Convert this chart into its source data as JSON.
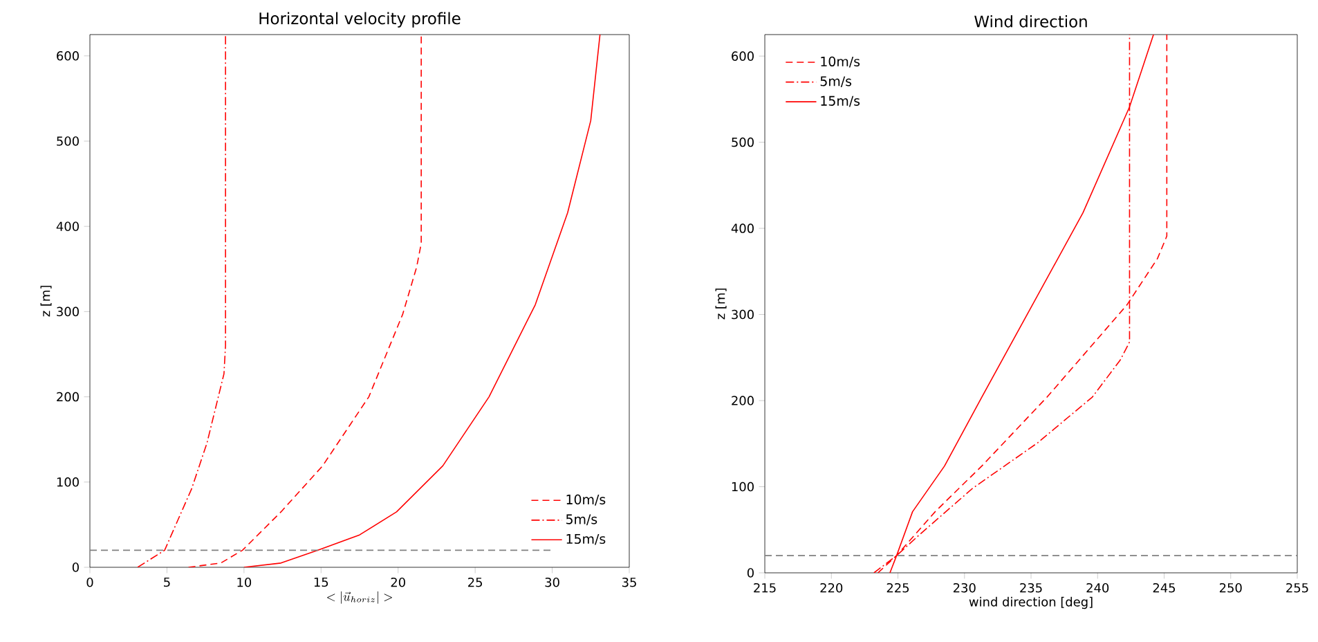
{
  "chart_data": [
    {
      "type": "line",
      "title": "Horizontal velocity profile",
      "xlabel": "<|\\vec{u}_{horiz}|>",
      "ylabel": "z [m]",
      "xlim": [
        0,
        35
      ],
      "ylim": [
        0,
        625
      ],
      "xticks": [
        0,
        5,
        10,
        15,
        20,
        25,
        30,
        35
      ],
      "yticks": [
        0,
        100,
        200,
        300,
        400,
        500,
        600
      ],
      "legend": "bottom right",
      "series": [
        {
          "name": "10m/s",
          "color": "#ff0000",
          "line_style": "dashed",
          "x": [
            6.4,
            8.5,
            9.9,
            12.4,
            15.1,
            18.1,
            20.3,
            21.2,
            21.5,
            21.5
          ],
          "values": [
            0,
            5,
            20,
            65,
            119,
            200,
            297,
            352,
            380,
            625
          ]
        },
        {
          "name": "5m/s",
          "color": "#ff0000",
          "line_style": "dashdot",
          "x": [
            3.1,
            4.85,
            6.6,
            7.6,
            8.7,
            8.8,
            8.8
          ],
          "values": [
            0,
            20,
            92,
            146,
            227,
            260,
            625
          ]
        },
        {
          "name": "15m/s",
          "color": "#ff0000",
          "line_style": "solid",
          "x": [
            10.0,
            12.4,
            14.8,
            17.5,
            19.9,
            22.9,
            25.9,
            28.9,
            31.0,
            32.5,
            33.1
          ],
          "values": [
            0,
            5,
            20,
            38,
            65,
            119,
            200,
            308,
            416,
            524,
            625
          ]
        },
        {
          "color": "#808080",
          "line_style": "dashed",
          "x": [
            0,
            30
          ],
          "values": [
            20,
            20
          ]
        }
      ]
    },
    {
      "type": "line",
      "title": "Wind direction",
      "xlabel": "wind direction [deg]",
      "ylabel": "z [m]",
      "xlim": [
        215,
        255
      ],
      "ylim": [
        0,
        625
      ],
      "xticks": [
        215,
        220,
        225,
        230,
        235,
        240,
        245,
        250,
        255
      ],
      "yticks": [
        0,
        100,
        200,
        300,
        400,
        500,
        600
      ],
      "legend": "top left",
      "ref_lines": [
        {
          "axis": "y",
          "value": 20,
          "color": "#808080",
          "line_style": "dashed"
        }
      ],
      "series": [
        {
          "name": "10m/s",
          "color": "#ff0000",
          "line_style": "dashed",
          "x": [
            223.5,
            224.9,
            227.8,
            231.3,
            236.2,
            242.2,
            244.5,
            245.2,
            245.2
          ],
          "values": [
            0,
            20,
            71,
            124,
            204,
            311,
            365,
            391,
            625
          ]
        },
        {
          "name": "5m/s",
          "color": "#ff0000",
          "line_style": "dashdot",
          "x": [
            223.2,
            224.9,
            226.6,
            230.6,
            235.5,
            239.6,
            241.7,
            242.4,
            242.4
          ],
          "values": [
            0,
            20,
            44,
            98,
            151,
            204,
            247,
            268,
            625
          ]
        },
        {
          "name": "15m/s",
          "color": "#ff0000",
          "line_style": "solid",
          "x": [
            224.4,
            224.9,
            226.1,
            228.5,
            231.3,
            235.1,
            238.9,
            242.4,
            244.2
          ],
          "values": [
            0,
            20,
            71,
            124,
            204,
            311,
            418,
            541,
            625
          ]
        }
      ]
    }
  ]
}
